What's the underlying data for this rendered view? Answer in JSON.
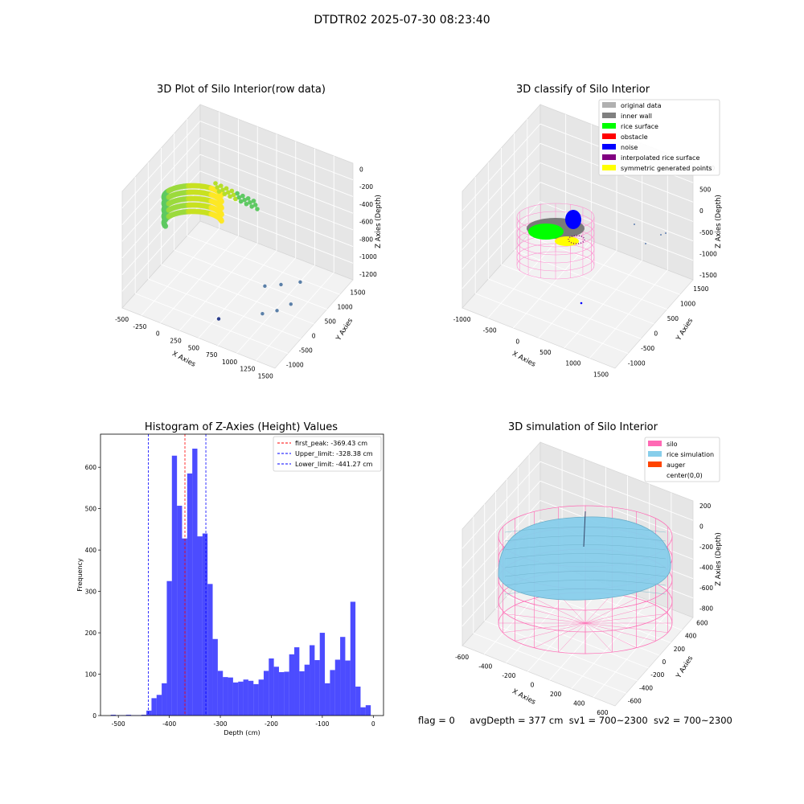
{
  "suptitle": "DTDTR02 2025-07-30 08:23:40",
  "status": {
    "flag": "flag = 0",
    "avg": "avgDepth = 377 cm",
    "sv1": "sv1 = 700~2300",
    "sv2": "sv2 = 700~2300"
  },
  "chart_data": [
    {
      "type": "scatter",
      "title": "3D Plot of Silo Interior(row data)",
      "xlabel": "X Axies",
      "ylabel": "Y Axies",
      "zlabel": "Z Axies (Depth)",
      "xticks": [
        "-500",
        "-250",
        "0",
        "250",
        "500",
        "750",
        "1000",
        "1250",
        "1500"
      ],
      "yticks": [
        "-1000",
        "-500",
        "0",
        "500",
        "1000",
        "1500"
      ],
      "zticks": [
        "0",
        "-200",
        "-400",
        "-600",
        "-800",
        "-1000",
        "-1200"
      ],
      "colormap": "viridis",
      "points": [
        {
          "x": 1000,
          "y": -100,
          "z": -870
        },
        {
          "x": 1150,
          "y": 50,
          "z": -860
        },
        {
          "x": 1300,
          "y": 300,
          "z": -880
        },
        {
          "x": 1300,
          "y": 0,
          "z": -1020
        },
        {
          "x": 1200,
          "y": -200,
          "z": -1050
        },
        {
          "x": 1050,
          "y": -300,
          "z": -1100
        },
        {
          "x": 600,
          "y": -600,
          "z": -1200
        }
      ]
    },
    {
      "type": "scatter",
      "title": "3D classify of Silo Interior",
      "xlabel": "X Axies",
      "ylabel": "Y Axies",
      "zlabel": "Z Axies (Depth)",
      "xticks": [
        "-1000",
        "-500",
        "0",
        "500",
        "1000",
        "1500"
      ],
      "yticks": [
        "-1000",
        "-500",
        "0",
        "500",
        "1000",
        "1500"
      ],
      "zticks": [
        "1000",
        "500",
        "0",
        "-500",
        "-1000",
        "-1500"
      ],
      "legend_position": "top-right",
      "legend": [
        {
          "label": "original data",
          "color": "#b0b0b0"
        },
        {
          "label": "inner wall",
          "color": "#808080"
        },
        {
          "label": "rice surface",
          "color": "#00ff00"
        },
        {
          "label": "obstacle",
          "color": "#ff0000"
        },
        {
          "label": "noise",
          "color": "#0000ff"
        },
        {
          "label": "interpolated rice surface",
          "color": "#800080"
        },
        {
          "label": "symmetric generated points",
          "color": "#ffff00"
        }
      ]
    },
    {
      "type": "bar",
      "title": "Histogram of Z-Axies (Height) Values",
      "xlabel": "Depth (cm)",
      "ylabel": "Frequency",
      "xlim": [
        -535,
        20
      ],
      "ylim": [
        0,
        680
      ],
      "xticks": [
        -500,
        -400,
        -300,
        -200,
        -100,
        0
      ],
      "yticks": [
        0,
        100,
        200,
        300,
        400,
        500,
        600
      ],
      "bin_start": -515,
      "bin_width": 10,
      "values": [
        2,
        1,
        1,
        2,
        1,
        1,
        2,
        12,
        42,
        50,
        78,
        325,
        628,
        507,
        428,
        585,
        645,
        433,
        440,
        318,
        185,
        108,
        93,
        92,
        80,
        82,
        87,
        84,
        76,
        87,
        108,
        138,
        118,
        105,
        106,
        148,
        165,
        107,
        123,
        170,
        134,
        200,
        78,
        110,
        135,
        190,
        133,
        275,
        70,
        20,
        25
      ],
      "color": "#0000ff",
      "legend_position": "top-right",
      "lines": [
        {
          "label": "first_peak: -369.43 cm",
          "x": -369.43,
          "color": "#ff0000"
        },
        {
          "label": "Upper_limit: -328.38 cm",
          "x": -328.38,
          "color": "#0000ff"
        },
        {
          "label": "Lower_limit: -441.27 cm",
          "x": -441.27,
          "color": "#0000ff"
        }
      ]
    },
    {
      "type": "scatter",
      "title": "3D simulation of Silo Interior",
      "xlabel": "X Axies",
      "ylabel": "Y Axies",
      "zlabel": "Z Axies (Depth)",
      "xticks": [
        "-600",
        "-400",
        "-200",
        "0",
        "200",
        "400",
        "600"
      ],
      "yticks": [
        "-600",
        "-400",
        "-200",
        "0",
        "200",
        "400",
        "600"
      ],
      "zticks": [
        "200",
        "0",
        "-200",
        "-400",
        "-600",
        "-800"
      ],
      "legend_position": "top-right",
      "legend": [
        {
          "label": "silo",
          "color": "#ff69b4"
        },
        {
          "label": "rice simulation",
          "color": "#87ceeb"
        },
        {
          "label": "auger",
          "color": "#ff4500"
        },
        {
          "label": "center(0,0)",
          "color": ""
        }
      ]
    }
  ]
}
